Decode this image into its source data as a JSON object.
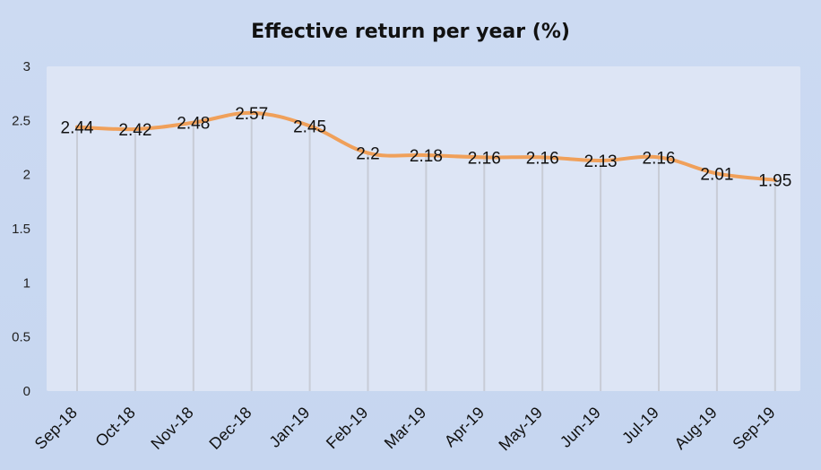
{
  "chart_data": {
    "type": "line",
    "title": "Effective return per year (%)",
    "xlabel": "",
    "ylabel": "",
    "categories": [
      "Sep-18",
      "Oct-18",
      "Nov-18",
      "Dec-18",
      "Jan-19",
      "Feb-19",
      "Mar-19",
      "Apr-19",
      "May-19",
      "Jun-19",
      "Jul-19",
      "Aug-19",
      "Sep-19"
    ],
    "series": [
      {
        "values": [
          2.44,
          2.42,
          2.48,
          2.57,
          2.45,
          2.2,
          2.18,
          2.16,
          2.16,
          2.13,
          2.16,
          2.01,
          1.95
        ]
      }
    ],
    "data_labels": [
      "2.44",
      "2.42",
      "2.48",
      "2.57",
      "2.45",
      "2.2",
      "2.18",
      "2.16",
      "2.16",
      "2.13",
      "2.16",
      "2.01",
      "1.95"
    ],
    "ylim": [
      0,
      3
    ],
    "yticks": [
      "0",
      "0.5",
      "1",
      "1.5",
      "2",
      "2.5",
      "3"
    ],
    "grid": "vertical drop lines",
    "legend": "none",
    "colors": {
      "line": "#f0a05a",
      "plot_background": "#dde5f5",
      "drop_line": "#c8ccd6"
    }
  }
}
